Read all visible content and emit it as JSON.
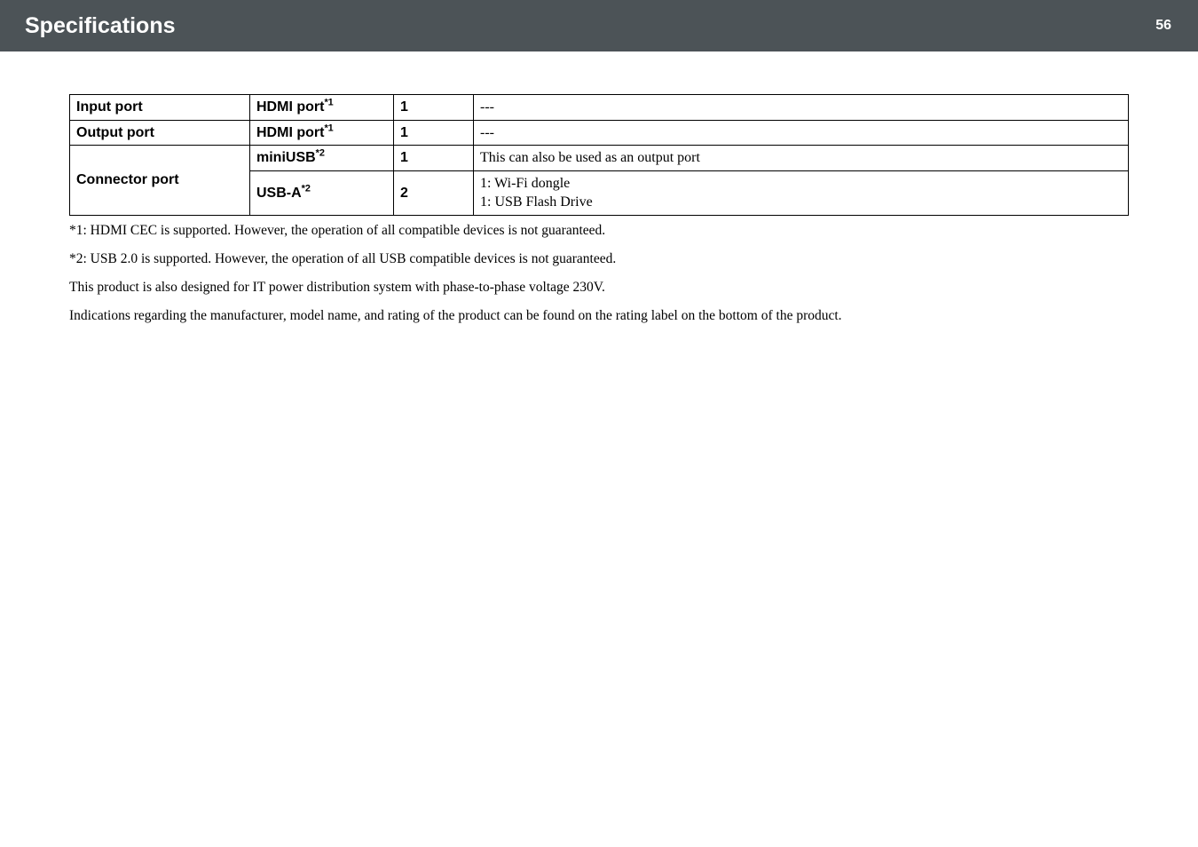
{
  "header": {
    "title": "Specifications",
    "page_number": "56",
    "bg_color": "#4c5357",
    "text_color": "#ffffff"
  },
  "table": {
    "rows": [
      {
        "label": "Input port",
        "port": "HDMI port",
        "sup": "*1",
        "count": "1",
        "desc": "---"
      },
      {
        "label": "Output port",
        "port": "HDMI port",
        "sup": "*1",
        "count": "1",
        "desc": "---"
      },
      {
        "group_label": "Connector port",
        "port": "miniUSB",
        "sup": "*2",
        "count": "1",
        "desc": "This can also be used as an output port"
      },
      {
        "port": "USB-A",
        "sup": "*2",
        "count": "2",
        "desc_line1": "1: Wi-Fi dongle",
        "desc_line2": "1: USB Flash Drive"
      }
    ]
  },
  "notes": {
    "n1": "*1: HDMI CEC is supported. However, the operation of all compatible devices is not guaranteed.",
    "n2": "*2: USB 2.0 is supported. However, the operation of all USB compatible devices is not guaranteed.",
    "n3": "This product is also designed for IT power distribution system with phase-to-phase voltage 230V.",
    "n4": "Indications regarding the manufacturer, model name, and rating of the product can be found on the rating label on the bottom of the product."
  }
}
